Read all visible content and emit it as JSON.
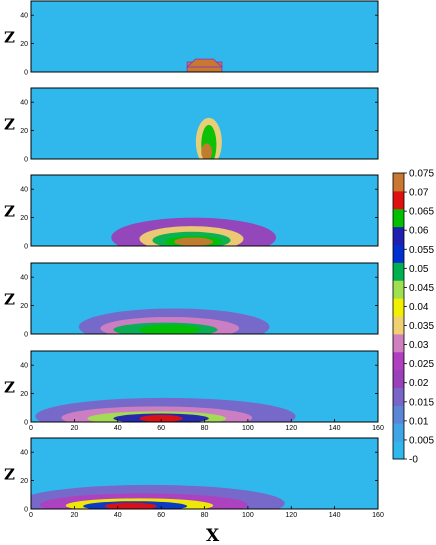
{
  "chart_data": {
    "type": "heatmap",
    "xlabel": "X",
    "ylabel": "Z",
    "xlim": [
      0,
      160
    ],
    "ylim": [
      0,
      50
    ],
    "x_ticks": [
      "0",
      "20",
      "40",
      "60",
      "80",
      "100",
      "120",
      "140",
      "160"
    ],
    "z_ticks": [
      "0",
      "20",
      "40"
    ],
    "colorbar": {
      "ticks": [
        "0.075",
        "0.07",
        "0.065",
        "0.06",
        "0.055",
        "0.05",
        "0.045",
        "0.04",
        "0.035",
        "0.03",
        "0.025",
        "0.02",
        "0.015",
        "0.01",
        "0.005",
        "-0"
      ],
      "range": [
        0,
        0.075
      ],
      "colors": [
        "#30b8ec",
        "#3fa5e6",
        "#5b86d8",
        "#7b64c8",
        "#9a40b8",
        "#b040c0",
        "#d080c0",
        "#f0d070",
        "#f0f000",
        "#a0e050",
        "#00b050",
        "#0030d0",
        "#2020b0",
        "#00c000",
        "#e01010",
        "#c87830"
      ]
    },
    "panels": [
      {
        "blobs": [
          {
            "x": 80,
            "z": 3,
            "rx": 8,
            "rz": 3.5,
            "v": 0.075,
            "kind": "rect"
          },
          {
            "x": 80,
            "z": 3,
            "rx": 5.5,
            "rz": 7,
            "v": 0.075,
            "kind": "cap"
          }
        ]
      },
      {
        "blobs": [
          {
            "x": 82,
            "z": 12,
            "rx": 6,
            "rz": 17,
            "v": 0.035
          },
          {
            "x": 82,
            "z": 10,
            "rx": 3.5,
            "rz": 14,
            "v": 0.062
          },
          {
            "x": 81,
            "z": 5,
            "rx": 2.5,
            "rz": 6,
            "v": 0.074
          }
        ]
      },
      {
        "blobs": [
          {
            "x": 75,
            "z": 6,
            "rx": 38,
            "rz": 14,
            "v": 0.02
          },
          {
            "x": 74,
            "z": 5,
            "rx": 24,
            "rz": 9,
            "v": 0.035
          },
          {
            "x": 74,
            "z": 4,
            "rx": 18,
            "rz": 6,
            "v": 0.05
          },
          {
            "x": 75,
            "z": 3,
            "rx": 13,
            "rz": 4,
            "v": 0.065
          },
          {
            "x": 75,
            "z": 3,
            "rx": 9,
            "rz": 3,
            "v": 0.072
          }
        ]
      },
      {
        "blobs": [
          {
            "x": 66,
            "z": 5,
            "rx": 44,
            "rz": 13,
            "v": 0.018
          },
          {
            "x": 64,
            "z": 4,
            "rx": 32,
            "rz": 8,
            "v": 0.032
          },
          {
            "x": 62,
            "z": 3,
            "rx": 24,
            "rz": 5,
            "v": 0.048
          },
          {
            "x": 64,
            "z": 3,
            "rx": 14,
            "rz": 3.5,
            "v": 0.062
          }
        ]
      },
      {
        "blobs": [
          {
            "x": 62,
            "z": 4,
            "rx": 60,
            "rz": 13,
            "v": 0.018
          },
          {
            "x": 58,
            "z": 3,
            "rx": 44,
            "rz": 8,
            "v": 0.03
          },
          {
            "x": 58,
            "z": 2.5,
            "rx": 32,
            "rz": 5,
            "v": 0.045
          },
          {
            "x": 60,
            "z": 2.5,
            "rx": 22,
            "rz": 3.5,
            "v": 0.058
          },
          {
            "x": 60,
            "z": 2.5,
            "rx": 10,
            "rz": 2.5,
            "v": 0.068
          }
        ]
      },
      {
        "blobs": [
          {
            "x": 55,
            "z": 4,
            "rx": 62,
            "rz": 13,
            "v": 0.016
          },
          {
            "x": 52,
            "z": 3,
            "rx": 48,
            "rz": 8,
            "v": 0.028
          },
          {
            "x": 50,
            "z": 2.5,
            "rx": 34,
            "rz": 5,
            "v": 0.042
          },
          {
            "x": 48,
            "z": 2,
            "rx": 24,
            "rz": 3.5,
            "v": 0.055
          },
          {
            "x": 46,
            "z": 2,
            "rx": 12,
            "rz": 2.5,
            "v": 0.066
          }
        ]
      }
    ]
  }
}
